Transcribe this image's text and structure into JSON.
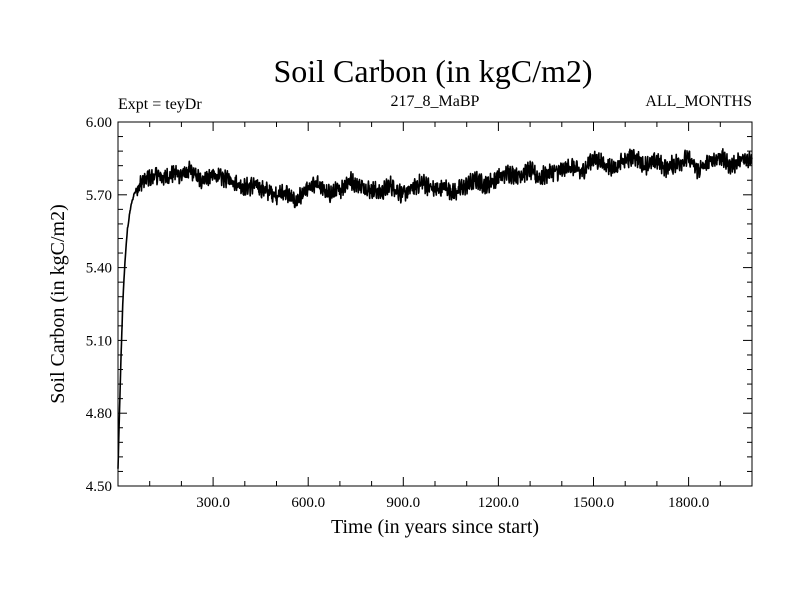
{
  "header": {
    "title": "Soil Carbon (in kgC/m2)",
    "left_label": "Expt = teyDr",
    "center_label": "217_8_MaBP",
    "right_label": "ALL_MONTHS"
  },
  "chart_data": {
    "type": "line",
    "title": "Soil Carbon (in kgC/m2)",
    "xlabel": "Time (in years since start)",
    "ylabel": "Soil Carbon (in kgC/m2)",
    "xlim": [
      0,
      2000
    ],
    "ylim": [
      4.5,
      6.0
    ],
    "x_ticks": [
      300,
      600,
      900,
      1200,
      1500,
      1800
    ],
    "x_tick_labels": [
      "300.0",
      "600.0",
      "900.0",
      "1200.0",
      "1500.0",
      "1800.0"
    ],
    "y_ticks": [
      4.5,
      4.8,
      5.1,
      5.4,
      5.7,
      6.0
    ],
    "y_tick_labels": [
      "4.50",
      "4.80",
      "5.10",
      "5.40",
      "5.70",
      "6.00"
    ],
    "grid": false,
    "series": [
      {
        "name": "Soil Carbon",
        "color": "#000000",
        "x": [
          0,
          5,
          10,
          15,
          20,
          25,
          30,
          40,
          50,
          60,
          80,
          100,
          120,
          150,
          180,
          200,
          230,
          260,
          300,
          330,
          360,
          400,
          430,
          460,
          500,
          530,
          560,
          580,
          600,
          630,
          660,
          700,
          730,
          760,
          800,
          830,
          860,
          900,
          930,
          960,
          1000,
          1030,
          1060,
          1100,
          1130,
          1160,
          1200,
          1230,
          1260,
          1300,
          1330,
          1360,
          1400,
          1430,
          1460,
          1500,
          1530,
          1560,
          1600,
          1630,
          1660,
          1700,
          1730,
          1760,
          1800,
          1830,
          1860,
          1900,
          1930,
          1960,
          2000
        ],
        "values": [
          4.57,
          4.82,
          5.05,
          5.25,
          5.38,
          5.48,
          5.56,
          5.65,
          5.7,
          5.73,
          5.76,
          5.77,
          5.78,
          5.77,
          5.79,
          5.78,
          5.8,
          5.76,
          5.78,
          5.77,
          5.76,
          5.73,
          5.74,
          5.72,
          5.7,
          5.71,
          5.67,
          5.7,
          5.72,
          5.75,
          5.7,
          5.72,
          5.76,
          5.74,
          5.72,
          5.71,
          5.74,
          5.7,
          5.73,
          5.75,
          5.72,
          5.73,
          5.71,
          5.74,
          5.76,
          5.74,
          5.77,
          5.79,
          5.78,
          5.8,
          5.77,
          5.79,
          5.8,
          5.82,
          5.79,
          5.85,
          5.83,
          5.81,
          5.84,
          5.86,
          5.82,
          5.84,
          5.81,
          5.83,
          5.85,
          5.8,
          5.83,
          5.86,
          5.82,
          5.84,
          5.85
        ]
      }
    ]
  }
}
